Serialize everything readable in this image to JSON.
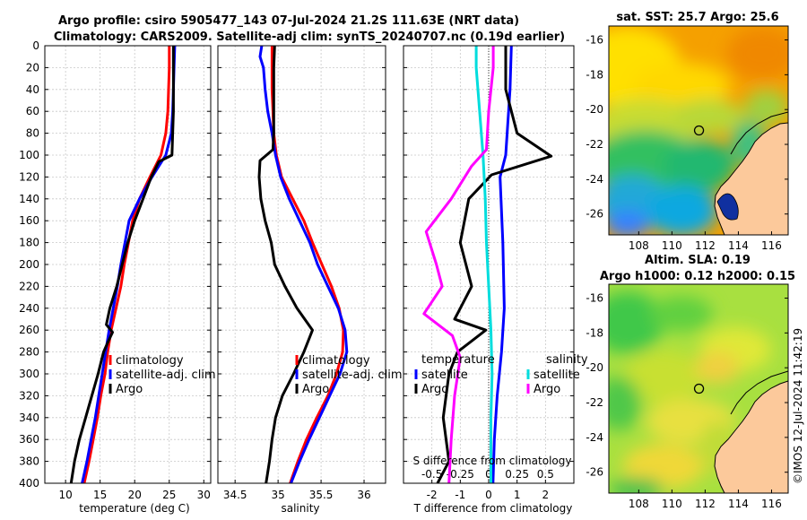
{
  "chart_data": [
    {
      "panel": "temperature",
      "type": "line",
      "title": "Argo profile: csiro 5905477_143 07-Jul-2024 21.2S 111.63E (NRT data)",
      "subtitle": "Climatology: CARS2009. Satellite-adj clim: synTS_20240707.nc (0.19d earlier)",
      "xlabel": "temperature (deg C)",
      "ylabel": "",
      "xlim": [
        7,
        31
      ],
      "ylim": [
        400,
        0
      ],
      "xticks": [
        10,
        15,
        20,
        25,
        30
      ],
      "yticks": [
        0,
        20,
        40,
        60,
        80,
        100,
        120,
        140,
        160,
        180,
        200,
        220,
        240,
        260,
        280,
        300,
        320,
        340,
        360,
        380,
        400
      ],
      "legend": [
        "climatology",
        "satellite-adj. clim",
        "Argo"
      ],
      "series": [
        {
          "name": "climatology",
          "color": "#ff0000",
          "points": [
            [
              25.0,
              0
            ],
            [
              25.0,
              20
            ],
            [
              24.9,
              40
            ],
            [
              24.8,
              60
            ],
            [
              24.5,
              80
            ],
            [
              23.8,
              100
            ],
            [
              22.2,
              120
            ],
            [
              20.7,
              140
            ],
            [
              19.7,
              160
            ],
            [
              19.1,
              180
            ],
            [
              18.5,
              200
            ],
            [
              18.0,
              220
            ],
            [
              17.3,
              240
            ],
            [
              16.6,
              260
            ],
            [
              16.1,
              280
            ],
            [
              15.7,
              300
            ],
            [
              15.1,
              320
            ],
            [
              14.6,
              340
            ],
            [
              14.0,
              360
            ],
            [
              13.4,
              380
            ],
            [
              12.7,
              400
            ]
          ]
        },
        {
          "name": "satellite-adj. clim",
          "color": "#0000ff",
          "points": [
            [
              25.8,
              0
            ],
            [
              25.7,
              20
            ],
            [
              25.6,
              40
            ],
            [
              25.5,
              60
            ],
            [
              25.3,
              80
            ],
            [
              24.5,
              100
            ],
            [
              22.5,
              120
            ],
            [
              20.7,
              140
            ],
            [
              19.2,
              160
            ],
            [
              18.6,
              180
            ],
            [
              18.0,
              200
            ],
            [
              17.5,
              220
            ],
            [
              16.9,
              240
            ],
            [
              16.3,
              260
            ],
            [
              15.8,
              280
            ],
            [
              15.3,
              300
            ],
            [
              14.8,
              320
            ],
            [
              14.3,
              340
            ],
            [
              13.7,
              360
            ],
            [
              13.1,
              380
            ],
            [
              12.4,
              400
            ]
          ]
        },
        {
          "name": "Argo",
          "color": "#000000",
          "points": [
            [
              25.6,
              0
            ],
            [
              25.6,
              20
            ],
            [
              25.6,
              40
            ],
            [
              25.6,
              60
            ],
            [
              25.5,
              80
            ],
            [
              25.4,
              100
            ],
            [
              23.5,
              106
            ],
            [
              22.4,
              120
            ],
            [
              21.2,
              140
            ],
            [
              20.0,
              160
            ],
            [
              19.0,
              180
            ],
            [
              18.2,
              200
            ],
            [
              17.4,
              220
            ],
            [
              16.4,
              240
            ],
            [
              15.9,
              255
            ],
            [
              16.8,
              262
            ],
            [
              16.2,
              270
            ],
            [
              15.5,
              280
            ],
            [
              14.7,
              300
            ],
            [
              13.8,
              320
            ],
            [
              12.9,
              340
            ],
            [
              12.0,
              360
            ],
            [
              11.3,
              380
            ],
            [
              10.8,
              400
            ]
          ]
        }
      ]
    },
    {
      "panel": "salinity",
      "type": "line",
      "xlabel": "salinity",
      "xlim": [
        34.3,
        36.25
      ],
      "ylim": [
        400,
        0
      ],
      "xticks": [
        "34.5",
        "35",
        "35.5",
        "36"
      ],
      "legend": [
        "climatology",
        "satellite-adj. clim",
        "Argo"
      ],
      "series": [
        {
          "name": "climatology",
          "color": "#ff0000",
          "points": [
            [
              34.93,
              0
            ],
            [
              34.93,
              20
            ],
            [
              34.93,
              40
            ],
            [
              34.94,
              60
            ],
            [
              34.95,
              80
            ],
            [
              34.98,
              100
            ],
            [
              35.04,
              120
            ],
            [
              35.17,
              140
            ],
            [
              35.3,
              160
            ],
            [
              35.4,
              180
            ],
            [
              35.51,
              200
            ],
            [
              35.62,
              220
            ],
            [
              35.71,
              240
            ],
            [
              35.76,
              260
            ],
            [
              35.75,
              280
            ],
            [
              35.68,
              300
            ],
            [
              35.58,
              320
            ],
            [
              35.45,
              340
            ],
            [
              35.33,
              360
            ],
            [
              35.23,
              380
            ],
            [
              35.14,
              400
            ]
          ]
        },
        {
          "name": "satellite-adj. clim",
          "color": "#0000ff",
          "points": [
            [
              34.81,
              0
            ],
            [
              34.79,
              10
            ],
            [
              34.83,
              20
            ],
            [
              34.85,
              40
            ],
            [
              34.88,
              60
            ],
            [
              34.93,
              80
            ],
            [
              34.97,
              100
            ],
            [
              35.03,
              120
            ],
            [
              35.13,
              140
            ],
            [
              35.25,
              160
            ],
            [
              35.37,
              180
            ],
            [
              35.46,
              200
            ],
            [
              35.58,
              220
            ],
            [
              35.7,
              240
            ],
            [
              35.78,
              260
            ],
            [
              35.8,
              280
            ],
            [
              35.72,
              300
            ],
            [
              35.6,
              320
            ],
            [
              35.48,
              340
            ],
            [
              35.36,
              360
            ],
            [
              35.25,
              380
            ],
            [
              35.15,
              400
            ]
          ]
        },
        {
          "name": "Argo",
          "color": "#000000",
          "points": [
            [
              34.96,
              0
            ],
            [
              34.95,
              20
            ],
            [
              34.95,
              40
            ],
            [
              34.95,
              60
            ],
            [
              34.95,
              80
            ],
            [
              34.94,
              95
            ],
            [
              34.79,
              105
            ],
            [
              34.78,
              120
            ],
            [
              34.8,
              140
            ],
            [
              34.85,
              160
            ],
            [
              34.92,
              180
            ],
            [
              34.96,
              200
            ],
            [
              35.08,
              220
            ],
            [
              35.22,
              240
            ],
            [
              35.4,
              260
            ],
            [
              35.3,
              280
            ],
            [
              35.18,
              300
            ],
            [
              35.05,
              320
            ],
            [
              34.97,
              340
            ],
            [
              34.93,
              360
            ],
            [
              34.9,
              380
            ],
            [
              34.86,
              400
            ]
          ]
        }
      ]
    },
    {
      "panel": "difference",
      "type": "line",
      "xlabel": "T difference from climatology",
      "xlabel2": "S difference from climatology",
      "xlim": [
        -3,
        3
      ],
      "ylim": [
        400,
        0
      ],
      "xticks": [
        "-2",
        "-1",
        "0",
        "1",
        "2"
      ],
      "xticks2": [
        "-0.5",
        "-0.25",
        "0",
        "0.25",
        "0.5"
      ],
      "legend_temperature_title": "temperature",
      "legend_salinity_title": "salinity",
      "legend_temperature": [
        "satellite",
        "Argo"
      ],
      "legend_salinity": [
        "satellite",
        "Argo"
      ],
      "series": [
        {
          "name": "T satellite",
          "color": "#0000ff",
          "points": [
            [
              0.8,
              0
            ],
            [
              0.75,
              40
            ],
            [
              0.6,
              100
            ],
            [
              0.4,
              120
            ],
            [
              0.5,
              180
            ],
            [
              0.55,
              240
            ],
            [
              0.45,
              280
            ],
            [
              0.3,
              320
            ],
            [
              0.2,
              360
            ],
            [
              0.15,
              400
            ]
          ]
        },
        {
          "name": "T Argo",
          "color": "#000000",
          "points": [
            [
              0.6,
              0
            ],
            [
              0.6,
              40
            ],
            [
              1.0,
              80
            ],
            [
              2.2,
              101
            ],
            [
              0.1,
              118
            ],
            [
              -0.7,
              140
            ],
            [
              -1.0,
              180
            ],
            [
              -0.6,
              220
            ],
            [
              -1.2,
              250
            ],
            [
              -0.1,
              260
            ],
            [
              -1.1,
              280
            ],
            [
              -1.4,
              300
            ],
            [
              -1.6,
              340
            ],
            [
              -1.4,
              380
            ],
            [
              -1.8,
              400
            ]
          ]
        },
        {
          "name": "S satellite",
          "color": "#00dddd",
          "points": [
            [
              -0.11,
              0
            ],
            [
              -0.11,
              20
            ],
            [
              -0.08,
              60
            ],
            [
              -0.05,
              100
            ],
            [
              -0.03,
              140
            ],
            [
              -0.02,
              180
            ],
            [
              0.0,
              220
            ],
            [
              0.02,
              260
            ],
            [
              0.03,
              300
            ],
            [
              0.02,
              340
            ],
            [
              0.02,
              400
            ]
          ]
        },
        {
          "name": "S Argo",
          "color": "#ff00ff",
          "points": [
            [
              0.04,
              0
            ],
            [
              0.04,
              20
            ],
            [
              0.0,
              60
            ],
            [
              -0.02,
              95
            ],
            [
              -0.15,
              110
            ],
            [
              -0.33,
              140
            ],
            [
              -0.55,
              170
            ],
            [
              -0.46,
              200
            ],
            [
              -0.41,
              220
            ],
            [
              -0.57,
              245
            ],
            [
              -0.32,
              265
            ],
            [
              -0.25,
              285
            ],
            [
              -0.3,
              320
            ],
            [
              -0.33,
              360
            ],
            [
              -0.35,
              400
            ]
          ]
        }
      ]
    },
    {
      "panel": "sst_map",
      "type": "heatmap",
      "title": "sat. SST: 25.7 Argo: 25.6",
      "xticks": [
        "108",
        "110",
        "112",
        "114",
        "116"
      ],
      "yticks": [
        "-16",
        "-18",
        "-20",
        "-22",
        "-24",
        "-26"
      ],
      "xlim": [
        106.2,
        117.0
      ],
      "ylim": [
        -27.2,
        -15.2
      ],
      "argo_position": [
        111.63,
        -21.2
      ]
    },
    {
      "panel": "sla_map",
      "type": "heatmap",
      "title": "Altim. SLA: 0.19",
      "subtitle": "Argo h1000: 0.12 h2000: 0.15",
      "xticks": [
        "108",
        "110",
        "112",
        "114",
        "116"
      ],
      "yticks": [
        "-16",
        "-18",
        "-20",
        "-22",
        "-24",
        "-26"
      ],
      "xlim": [
        106.2,
        117.0
      ],
      "ylim": [
        -27.2,
        -15.2
      ],
      "argo_position": [
        111.63,
        -21.2
      ]
    }
  ],
  "credit": "©IMOS 12-Jul-2024 11:42:19",
  "colors": {
    "land": "#fcc99b",
    "climatology": "#ff0000",
    "satellite": "#0000ff",
    "argo": "#000000",
    "s_sat": "#00dddd",
    "s_argo": "#ff00ff"
  }
}
